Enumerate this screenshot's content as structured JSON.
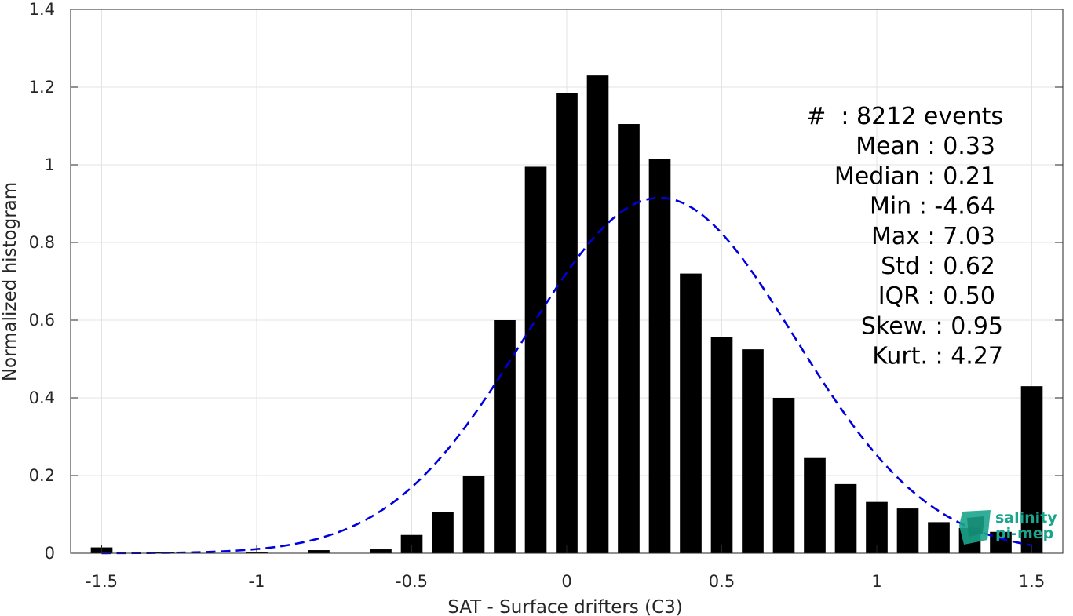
{
  "chart_data": {
    "type": "bar",
    "xlabel": "SAT - Surface drifters (C3)",
    "ylabel": "Normalized histogram",
    "xlim": [
      -1.6,
      1.6
    ],
    "ylim": [
      0,
      1.4
    ],
    "grid": true,
    "xticks": [
      -1.5,
      -1,
      -0.5,
      0,
      0.5,
      1,
      1.5
    ],
    "xtick_labels": [
      "-1.5",
      "-1",
      "-0.5",
      "0",
      "0.5",
      "1",
      "1.5"
    ],
    "yticks": [
      0,
      0.2,
      0.4,
      0.6,
      0.8,
      1,
      1.2,
      1.4
    ],
    "ytick_labels": [
      "0",
      "0.2",
      "0.4",
      "0.6",
      "0.8",
      "1",
      "1.2",
      "1.4"
    ],
    "bar_color": "#000000",
    "bar_width": 0.07,
    "bars": {
      "x": [
        -1.5,
        -1.4,
        -1.3,
        -1.2,
        -1.1,
        -1.0,
        -0.9,
        -0.8,
        -0.7,
        -0.6,
        -0.5,
        -0.4,
        -0.3,
        -0.2,
        -0.1,
        0.0,
        0.1,
        0.2,
        0.3,
        0.4,
        0.5,
        0.6,
        0.7,
        0.8,
        0.9,
        1.0,
        1.1,
        1.2,
        1.3,
        1.4,
        1.5
      ],
      "y": [
        0.015,
        0.0,
        0.002,
        0.0,
        0.0,
        0.002,
        0.0,
        0.008,
        0.0,
        0.01,
        0.047,
        0.106,
        0.2,
        0.6,
        0.995,
        1.185,
        1.23,
        1.105,
        1.015,
        0.72,
        0.557,
        0.525,
        0.4,
        0.245,
        0.178,
        0.132,
        0.115,
        0.08,
        0.065,
        0.055,
        0.43
      ]
    },
    "fit": {
      "type": "normal",
      "mean": 0.3,
      "peak": 0.915,
      "sigma": 0.436,
      "x_range": [
        -1.5,
        1.5
      ],
      "color": "#0000dd",
      "style": "dashed"
    },
    "annotations": [
      {
        "label": "#  : 8212 events"
      },
      {
        "label": "Mean : 0.33"
      },
      {
        "label": "Median : 0.21"
      },
      {
        "label": "Min : -4.64"
      },
      {
        "label": "Max : 7.03"
      },
      {
        "label": "Std : 0.62"
      },
      {
        "label": "IQR : 0.50"
      },
      {
        "label": "Skew. : 0.95"
      },
      {
        "label": "Kurt. : 4.27"
      }
    ]
  },
  "logo": {
    "line1": "salinity",
    "line2": "pi-mep",
    "color": "#1aa58c"
  }
}
